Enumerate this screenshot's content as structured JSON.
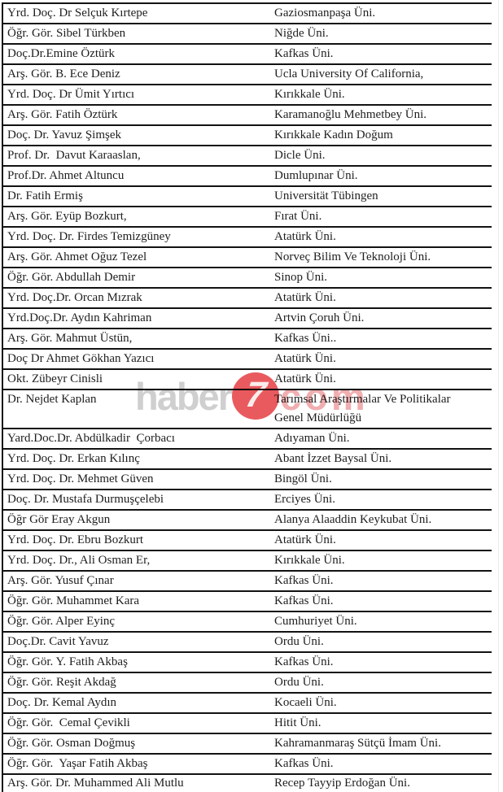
{
  "document": {
    "type": "scanned-list",
    "columns": [
      "name",
      "university"
    ],
    "rows": [
      {
        "name": "Yrd. Doç. Dr Selçuk Kırtepe",
        "university": "Gaziosmanpaşa Üni."
      },
      {
        "name": "Öğr. Gör. Sibel Türkben",
        "university": "Niğde Üni."
      },
      {
        "name": "Doç.Dr.Emine Öztürk",
        "university": "Kafkas Üni."
      },
      {
        "name": "Arş. Gör. B. Ece Deniz",
        "university": "Ucla University Of California,"
      },
      {
        "name": "Yrd. Doç. Dr Ümit Yırtıcı",
        "university": "Kırıkkale Üni."
      },
      {
        "name": "Arş. Gör. Fatih Öztürk",
        "university": "Karamanoğlu Mehmetbey Üni."
      },
      {
        "name": "Doç. Dr. Yavuz Şimşek",
        "university": "Kırıkkale Kadın Doğum"
      },
      {
        "name": "Prof. Dr.  Davut Karaaslan,",
        "university": "Dicle Üni."
      },
      {
        "name": "Prof.Dr. Ahmet Altuncu",
        "university": "Dumlupınar Üni."
      },
      {
        "name": "Dr. Fatih Ermiş",
        "university": "Universität Tübingen"
      },
      {
        "name": "Arş. Gör. Eyüp Bozkurt,",
        "university": "Fırat Üni."
      },
      {
        "name": "Yrd. Doç. Dr. Firdes Temizgüney",
        "university": "Atatürk Üni."
      },
      {
        "name": "Arş. Gör. Ahmet Oğuz Tezel",
        "university": "Norveç Bilim Ve Teknoloji Üni."
      },
      {
        "name": "Öğr. Gör. Abdullah Demir",
        "university": "Sinop Üni."
      },
      {
        "name": "Yrd. Doç.Dr. Orcan Mızrak",
        "university": "Atatürk Üni."
      },
      {
        "name": "Yrd.Doç.Dr. Aydın Kahriman",
        "university": "Artvin Çoruh Üni."
      },
      {
        "name": "Arş. Gör. Mahmut Üstün,",
        "university": "Kafkas Üni.."
      },
      {
        "name": "Doç Dr Ahmet Gökhan Yazıcı",
        "university": "Atatürk Üni."
      },
      {
        "name": "Okt. Zübeyr Cinisli",
        "university": "Atatürk Üni."
      },
      {
        "name": "Dr. Nejdet Kaplan",
        "university": "Tarımsal Araştırmalar Ve Politikalar",
        "university_line2": "Genel Müdürlüğü"
      },
      {
        "name": "Yard.Doc.Dr. Abdülkadir  Çorbacı",
        "university": "Adıyaman Üni."
      },
      {
        "name": "Yrd. Doç. Dr. Erkan Kılınç",
        "university": "Abant İzzet Baysal Üni."
      },
      {
        "name": "Yrd. Doç. Dr. Mehmet Güven",
        "university": "Bingöl Üni."
      },
      {
        "name": "Doç. Dr. Mustafa Durmuşçelebi",
        "university": "Erciyes Üni."
      },
      {
        "name": "Öğr Gör Eray Akgun",
        "university": "Alanya Alaaddin Keykubat Üni."
      },
      {
        "name": "Yrd. Doç. Dr. Ebru Bozkurt",
        "university": "Atatürk Üni."
      },
      {
        "name": "Yrd. Doç. Dr., Ali Osman Er,",
        "university": "Kırıkkale Üni."
      },
      {
        "name": "Arş. Gör. Yusuf Çınar",
        "university": "Kafkas Üni."
      },
      {
        "name": "Öğr. Gör. Muhammet Kara",
        "university": "Kafkas Üni."
      },
      {
        "name": "Öğr. Gör. Alper Eyinç",
        "university": "Cumhuriyet Üni."
      },
      {
        "name": "Doç.Dr. Cavit Yavuz",
        "university": "Ordu Üni."
      },
      {
        "name": "Öğr. Gör. Y. Fatih Akbaş",
        "university": "Kafkas Üni."
      },
      {
        "name": "Öğr. Gör. Reşit Akdağ",
        "university": "Ordu Üni."
      },
      {
        "name": "Doç. Dr. Kemal Aydın",
        "university": "Kocaeli Üni."
      },
      {
        "name": "Öğr. Gör.  Cemal Çevikli",
        "university": "Hitit Üni."
      },
      {
        "name": "Öğr. Gör. Osman Doğmuş",
        "university": "Kahramanmaraş Sütçü İmam Üni."
      },
      {
        "name": "Öğr. Gör.  Yaşar Fatih Akbaş",
        "university": "Kafkas Üni."
      },
      {
        "name": "Arş. Gör. Dr. Muhammed Ali Mutlu",
        "university": "Recep Tayyip Erdoğan Üni."
      }
    ]
  },
  "watermark": {
    "prefix": "haber",
    "badge": "7",
    "suffix": "com",
    "badge_color": "#e95a5e",
    "prefix_color": "#d0cfcf",
    "suffix_color": "#f0aeb0"
  },
  "colors": {
    "background": "#ffffff",
    "line": "#121212",
    "text": "#1e1e1e"
  }
}
